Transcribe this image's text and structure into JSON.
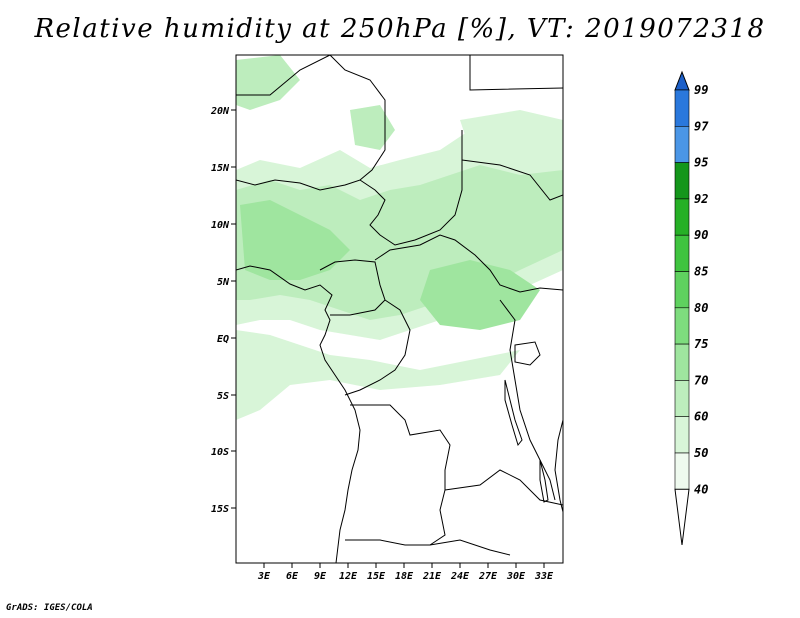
{
  "title": "Relative humidity at 250hPa [%], VT: 2019072318",
  "credit": "GrADS: IGES/COLA",
  "map": {
    "lat_labels": [
      "20N",
      "15N",
      "10N",
      "5N",
      "EQ",
      "5S",
      "10S",
      "15S"
    ],
    "lon_labels": [
      "3E",
      "6E",
      "9E",
      "12E",
      "15E",
      "18E",
      "21E",
      "24E",
      "27E",
      "30E",
      "33E"
    ]
  },
  "colorbar": {
    "levels": [
      "40",
      "50",
      "60",
      "70",
      "75",
      "80",
      "85",
      "90",
      "92",
      "95",
      "97",
      "99"
    ],
    "colors": [
      "#effaef",
      "#d8f5d8",
      "#bdedbd",
      "#9fe59f",
      "#7edc7e",
      "#5fd15f",
      "#3fc43f",
      "#26b026",
      "#14961b",
      "#4b96e6",
      "#2a78dc",
      "#1c5fc8"
    ]
  }
}
